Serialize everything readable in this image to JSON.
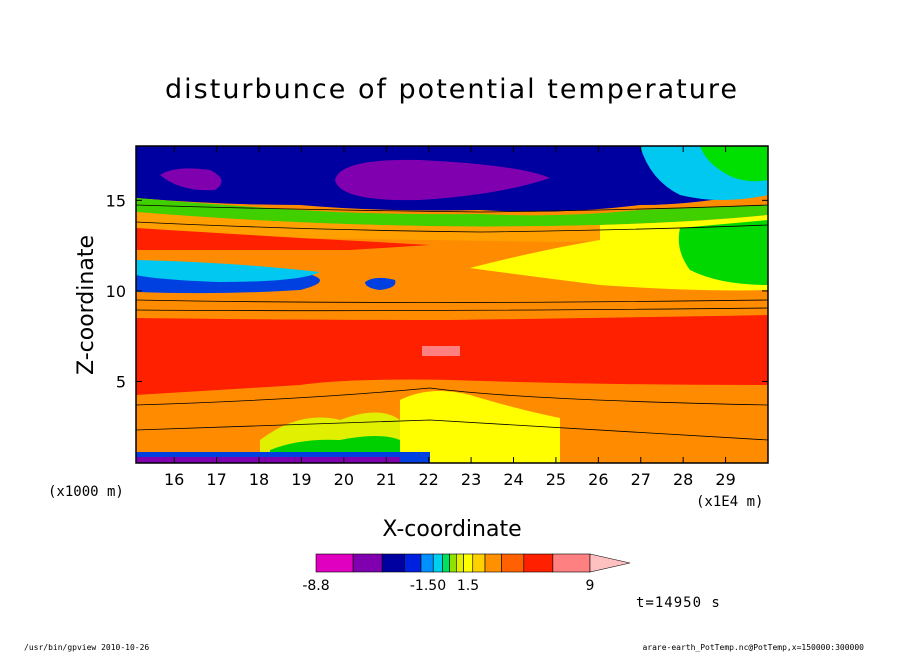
{
  "chart_data": {
    "type": "heatmap",
    "title": "disturbunce of potential temperature",
    "xlabel": "X-coordinate",
    "ylabel": "Z-coordinate",
    "x_unit": "(x1E4 m)",
    "y_unit": "(x1000 m)",
    "xlim": [
      15.1,
      30
    ],
    "ylim": [
      0.5,
      18
    ],
    "x_ticks": [
      16,
      17,
      18,
      19,
      20,
      21,
      22,
      23,
      24,
      25,
      26,
      27,
      28,
      29
    ],
    "x_tick_labels": [
      "16",
      "17",
      "18",
      "19",
      "20",
      "21",
      "22",
      "23",
      "24",
      "25",
      "26",
      "27",
      "28",
      "29"
    ],
    "y_ticks": [
      5,
      10,
      15
    ],
    "y_tick_labels": [
      "5",
      "10",
      "15"
    ],
    "colorbar": {
      "labels": [
        "-8.8",
        "-1.50",
        "1.5",
        "9"
      ],
      "label_values": [
        -8.8,
        -1.5,
        1.5,
        9
      ],
      "colors": [
        "#e000c0",
        "#8000b0",
        "#0000a0",
        "#0020e0",
        "#0090ff",
        "#00d0f0",
        "#00e060",
        "#90e000",
        "#e0f000",
        "#ffff00",
        "#ffd000",
        "#ff9000",
        "#ff6000",
        "#ff2000",
        "#ff8080",
        "#ffc0c0"
      ]
    },
    "layers": [
      {
        "name": "deep-purple",
        "color": "#0000a0"
      },
      {
        "name": "purple",
        "color": "#8000b0"
      },
      {
        "name": "red",
        "color": "#ff2000"
      },
      {
        "name": "orange",
        "color": "#ff7000"
      },
      {
        "name": "yellow",
        "color": "#ffff00"
      }
    ]
  },
  "time_label": "t=14950 s",
  "footer": {
    "left": "/usr/bin/gpview   2010-10-26",
    "right": "arare-earth_PotTemp.nc@PotTemp,x=150000:300000"
  }
}
